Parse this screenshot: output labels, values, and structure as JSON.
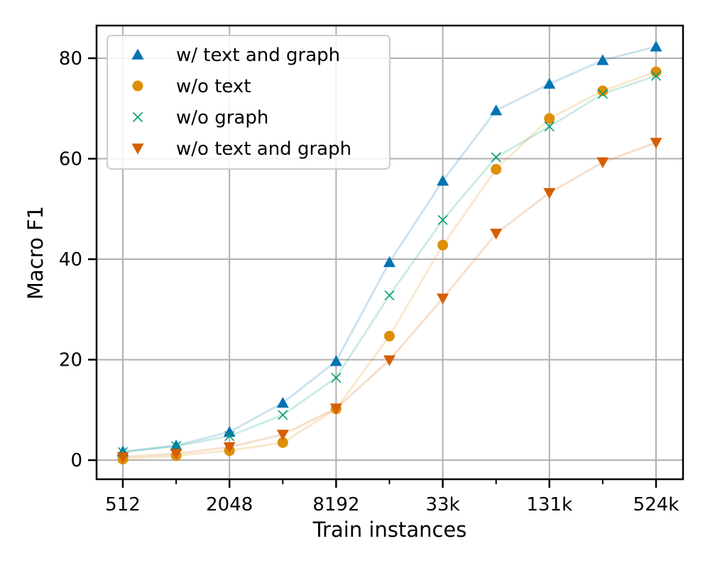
{
  "chart_data": {
    "type": "line",
    "xlabel": "Train instances",
    "ylabel": "Macro F1",
    "x_scale": "log2",
    "x": [
      512,
      1024,
      2048,
      4096,
      8192,
      16384,
      32768,
      65536,
      131072,
      262144,
      524288
    ],
    "x_ticks": [
      {
        "value": 512,
        "label": "512"
      },
      {
        "value": 2048,
        "label": "2048"
      },
      {
        "value": 8192,
        "label": "8192"
      },
      {
        "value": 32768,
        "label": "33k"
      },
      {
        "value": 131072,
        "label": "131k"
      },
      {
        "value": 524288,
        "label": "524k"
      }
    ],
    "y_ticks": [
      0,
      20,
      40,
      60,
      80
    ],
    "ylim": [
      -3.8,
      86.5
    ],
    "grid": true,
    "legend_position": "top-left",
    "series": [
      {
        "name": "w/ text and graph",
        "marker": "triangle-up",
        "color": "#0173b2",
        "values": [
          1.7,
          2.9,
          5.6,
          11.4,
          19.7,
          39.4,
          55.6,
          69.6,
          74.9,
          79.6,
          82.3
        ]
      },
      {
        "name": "w/o text",
        "marker": "circle",
        "color": "#de8f05",
        "values": [
          0.2,
          0.9,
          1.9,
          3.5,
          10.2,
          24.7,
          42.8,
          57.9,
          68.0,
          73.5,
          77.3
        ]
      },
      {
        "name": "w/o graph",
        "marker": "x",
        "color": "#029e73",
        "values": [
          1.6,
          2.8,
          4.8,
          9.0,
          16.4,
          32.8,
          47.8,
          60.3,
          66.4,
          72.9,
          76.5
        ]
      },
      {
        "name": "w/o text and graph",
        "marker": "triangle-down",
        "color": "#d55e00",
        "values": [
          0.6,
          1.3,
          2.6,
          5.1,
          10.3,
          19.9,
          32.2,
          45.1,
          53.2,
          59.3,
          63.2
        ]
      }
    ]
  }
}
